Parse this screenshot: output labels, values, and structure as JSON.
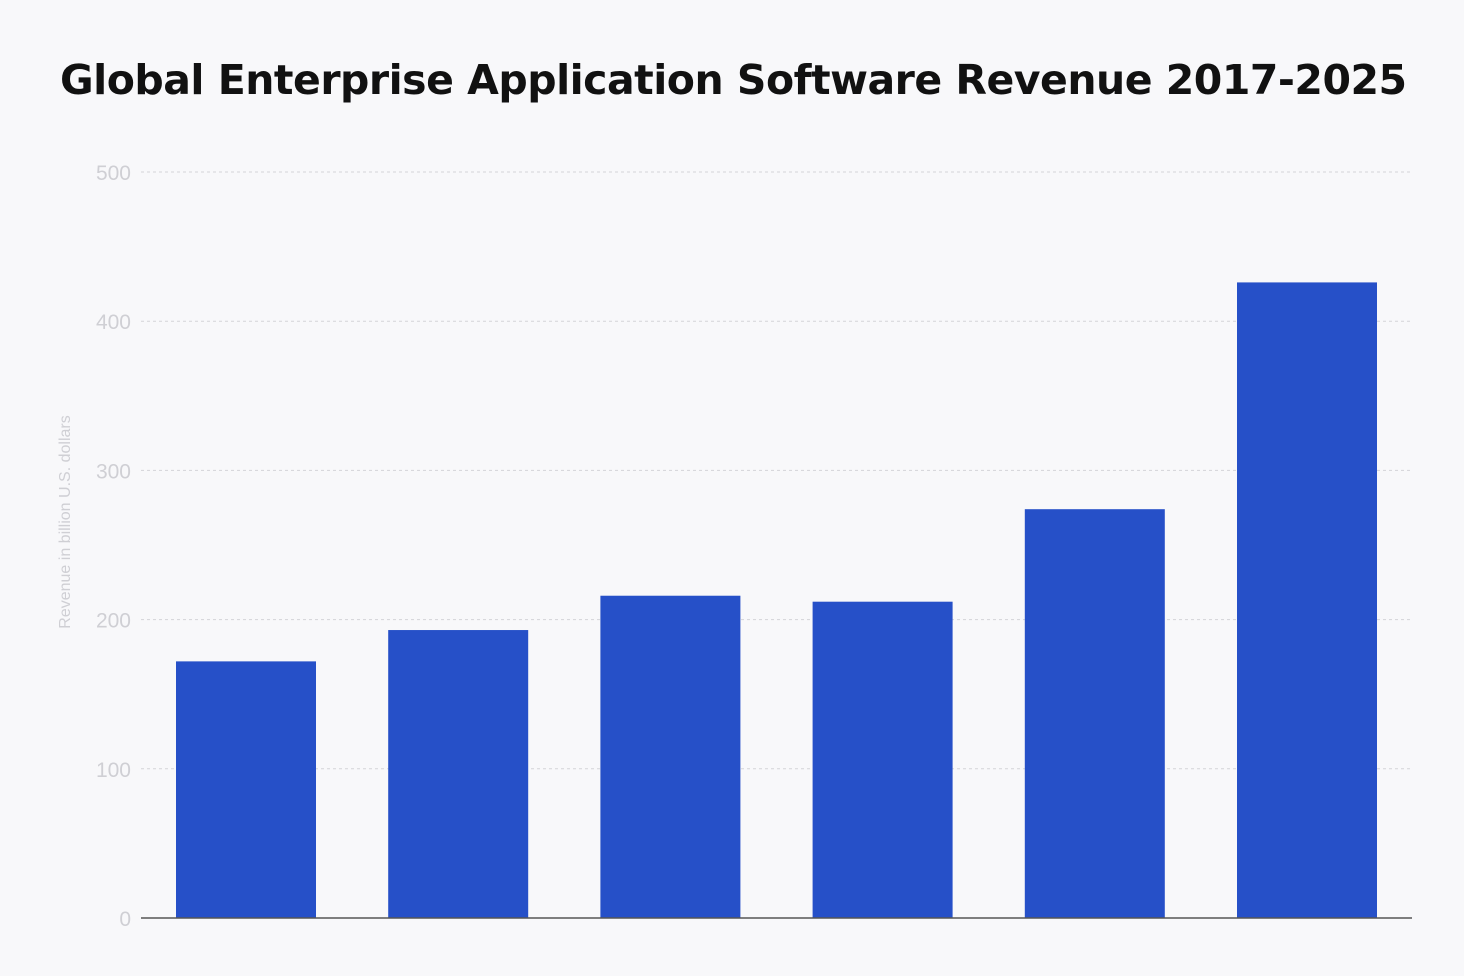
{
  "chart_data": {
    "type": "bar",
    "title": "Global Enterprise Application Software Revenue 2017-2025",
    "xlabel": "",
    "ylabel": "Revenue in billion U.S. dollars",
    "categories": [
      "",
      "",
      "",
      "",
      "",
      ""
    ],
    "values": [
      172,
      193,
      216,
      212,
      274,
      426
    ],
    "ylim": [
      0,
      500
    ],
    "yticks": [
      "0",
      "100",
      "200",
      "300",
      "400",
      "500"
    ],
    "ytick_values": [
      0,
      100,
      200,
      300,
      400,
      500
    ],
    "grid": true,
    "legend": "none",
    "colors": {
      "bar": "#2650c8",
      "grid": "#d4d4d8",
      "axis": "#555555",
      "tick_text": "#cfcfd4"
    }
  }
}
